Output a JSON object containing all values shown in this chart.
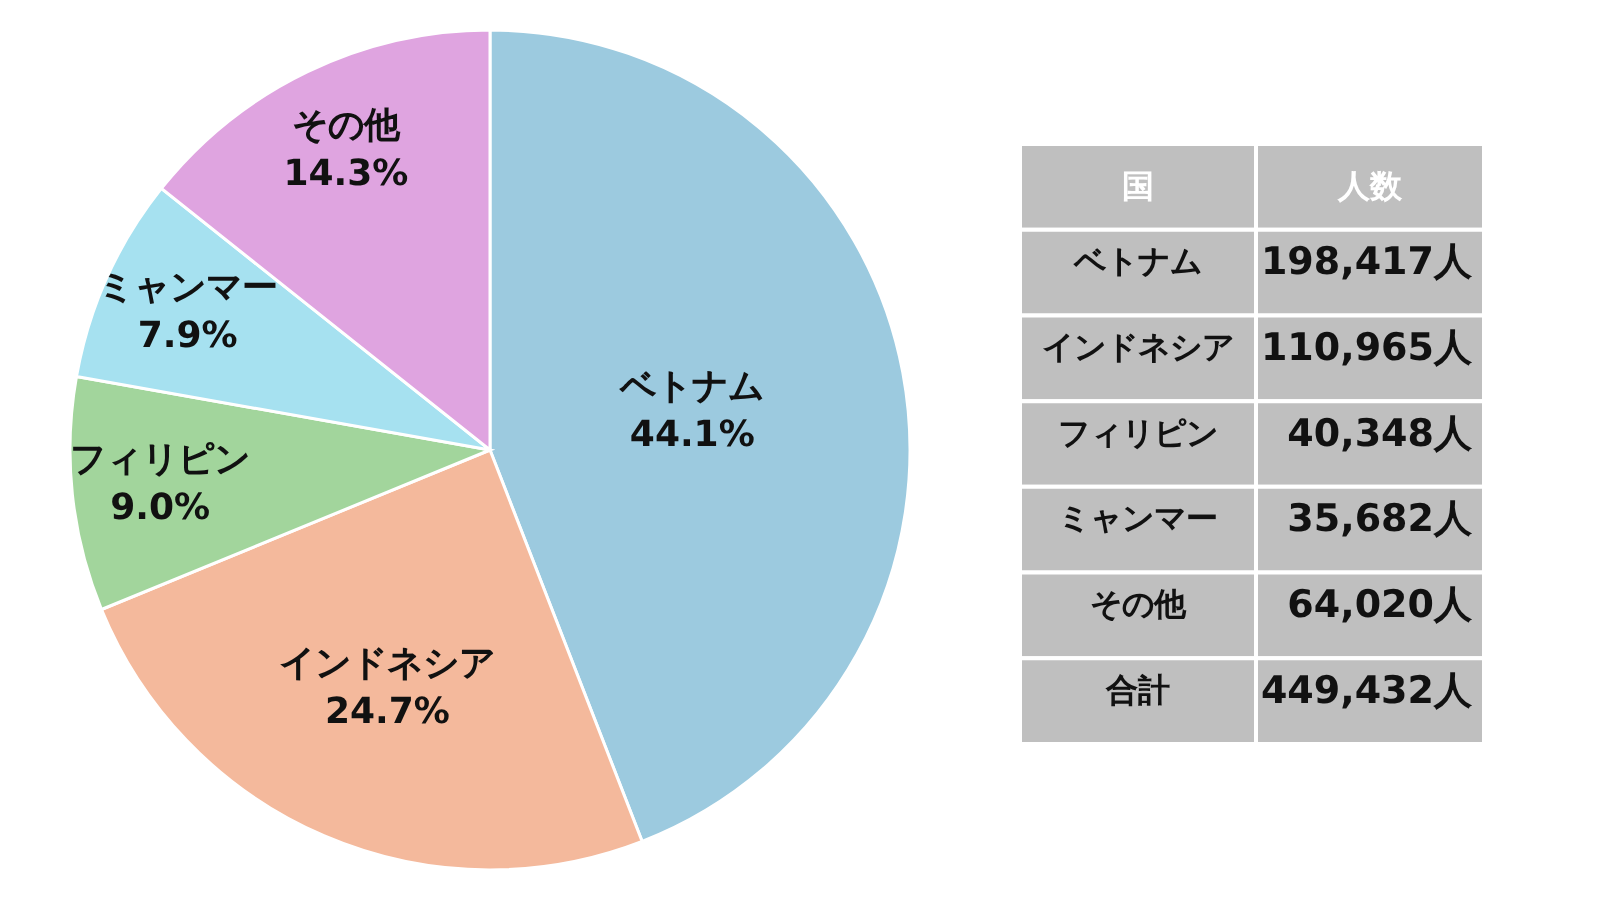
{
  "chart_data": [
    {
      "type": "pie",
      "categories": [
        "ベトナム",
        "インドネシア",
        "フィリピン",
        "ミャンマー",
        "その他"
      ],
      "values": [
        44.1,
        24.7,
        9.0,
        7.9,
        14.3
      ],
      "colors": [
        "#9ccadf",
        "#f4b99c",
        "#a2d59c",
        "#a6e1f0",
        "#dfa4e0"
      ],
      "value_labels": [
        "44.1%",
        "24.7%",
        "9.0%",
        "7.9%",
        "14.3%"
      ]
    },
    {
      "type": "other",
      "annotations": [
        "国",
        "人数",
        "ベトナム",
        "198,417人",
        "インドネシア",
        "110,965人",
        "フィリピン",
        "40,348人",
        "ミャンマー",
        "35,682人",
        "その他",
        "64,020人",
        "合計",
        "449,432人"
      ]
    }
  ]
}
